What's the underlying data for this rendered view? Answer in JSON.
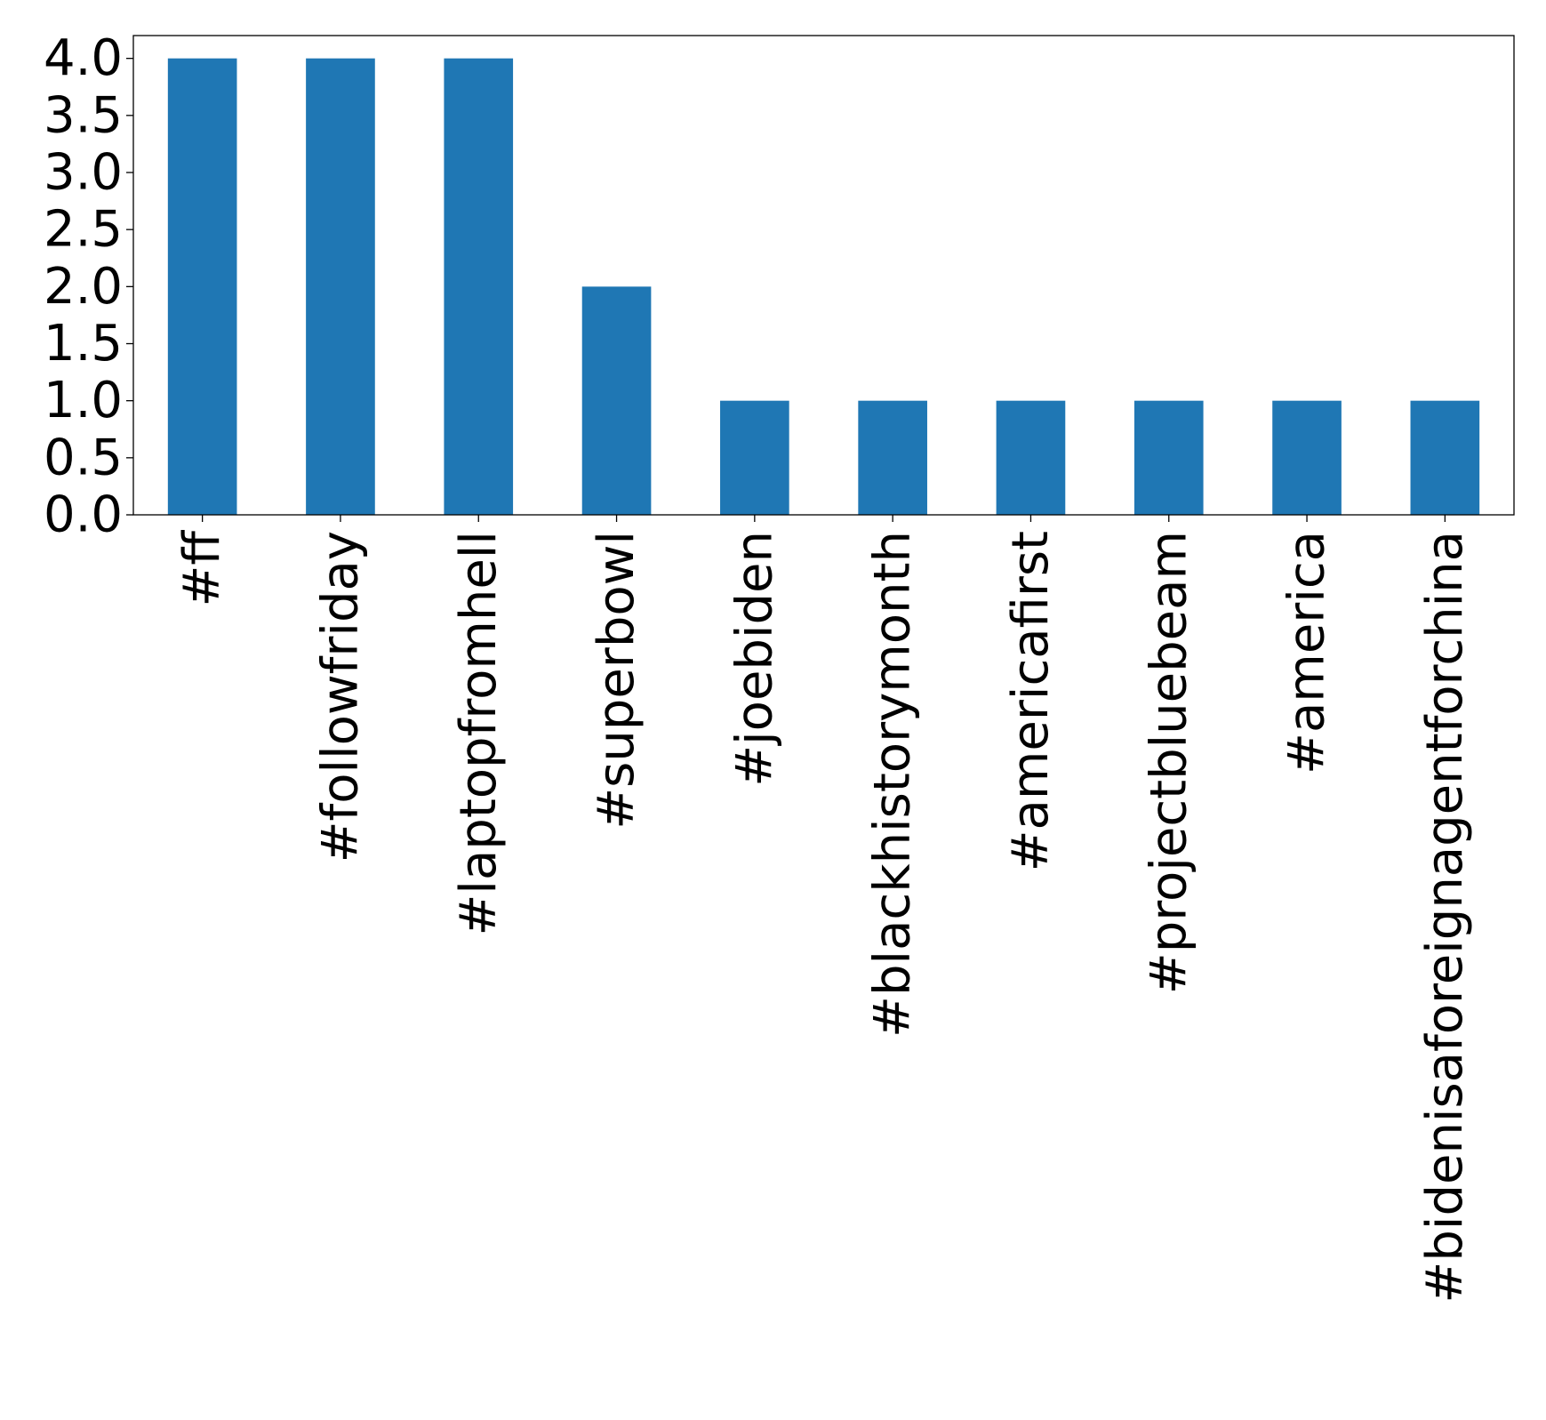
{
  "chart_data": {
    "type": "bar",
    "categories": [
      "#ff",
      "#followfriday",
      "#laptopfromhell",
      "#superbowl",
      "#joebiden",
      "#blackhistorymonth",
      "#americafirst",
      "#projectbluebeam",
      "#america",
      "#bidenisaforeignagentforchina"
    ],
    "values": [
      4,
      4,
      4,
      2,
      1,
      1,
      1,
      1,
      1,
      1
    ],
    "title": "",
    "xlabel": "",
    "ylabel": "",
    "ylim": [
      0,
      4.2
    ],
    "yticks": [
      "0.0",
      "0.5",
      "1.0",
      "1.5",
      "2.0",
      "2.5",
      "3.0",
      "3.5",
      "4.0"
    ],
    "grid": false,
    "bar_color": "#1f77b4"
  }
}
